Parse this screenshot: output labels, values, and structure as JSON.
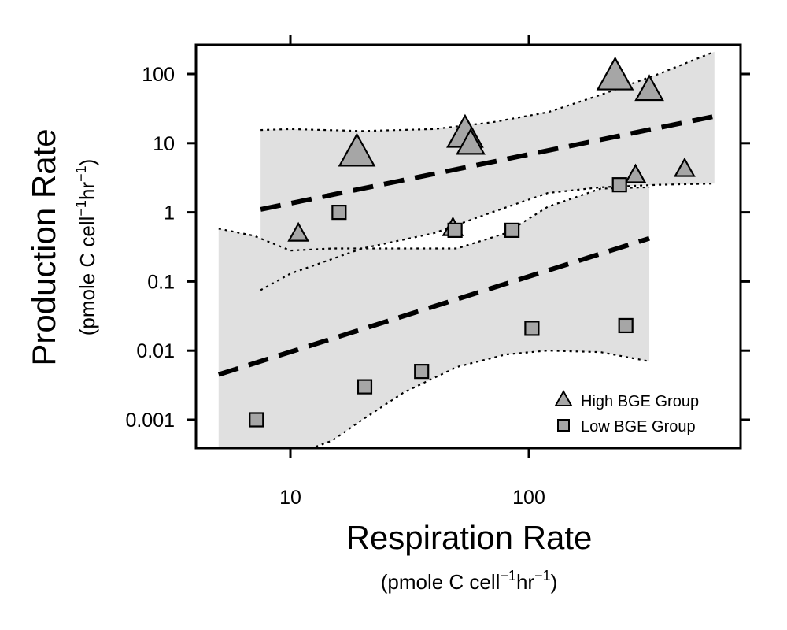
{
  "chart_data": {
    "type": "scatter",
    "x_scale": "log",
    "y_scale": "log",
    "xlim": [
      4.6,
      700
    ],
    "ylim": [
      0.0004,
      300
    ],
    "xlabel": "Respiration Rate",
    "xlabel_units": {
      "pre": "(pmole C cell",
      "exp1": "−1",
      "mid": "hr",
      "exp2": "−1",
      "post": ")"
    },
    "ylabel": "Production Rate",
    "ylabel_units": {
      "pre": "(pmole C cell",
      "exp1": "−1",
      "mid": "hr",
      "exp2": "−1",
      "post": ")"
    },
    "x_ticks": [
      {
        "value": 10,
        "label": "10"
      },
      {
        "value": 100,
        "label": "100"
      }
    ],
    "y_ticks": [
      {
        "value": 100,
        "label": "100"
      },
      {
        "value": 10,
        "label": "10"
      },
      {
        "value": 1,
        "label": "1"
      },
      {
        "value": 0.1,
        "label": "0.1"
      },
      {
        "value": 0.01,
        "label": "0.01"
      },
      {
        "value": 0.001,
        "label": "0.001"
      }
    ],
    "legend_position": "bottom-right",
    "grid": false,
    "series": [
      {
        "name": "High BGE Group",
        "marker": "triangle",
        "color": "#a6a6a6",
        "points": [
          {
            "x": 10.8,
            "y": 0.5,
            "size": "small"
          },
          {
            "x": 19,
            "y": 7.5,
            "size": "large"
          },
          {
            "x": 48,
            "y": 0.6,
            "size": "small"
          },
          {
            "x": 54,
            "y": 14,
            "size": "large"
          },
          {
            "x": 57,
            "y": 10,
            "size": "medium"
          },
          {
            "x": 230,
            "y": 95,
            "size": "large"
          },
          {
            "x": 280,
            "y": 3.5,
            "size": "small"
          },
          {
            "x": 320,
            "y": 60,
            "size": "medium"
          },
          {
            "x": 450,
            "y": 4.3,
            "size": "small"
          }
        ]
      },
      {
        "name": "Low BGE Group",
        "marker": "square",
        "color": "#a6a6a6",
        "points": [
          {
            "x": 7.2,
            "y": 0.001
          },
          {
            "x": 16,
            "y": 1.0
          },
          {
            "x": 20.5,
            "y": 0.003
          },
          {
            "x": 35.5,
            "y": 0.005
          },
          {
            "x": 49,
            "y": 0.55
          },
          {
            "x": 85,
            "y": 0.55
          },
          {
            "x": 103,
            "y": 0.021
          },
          {
            "x": 240,
            "y": 2.5
          },
          {
            "x": 255,
            "y": 0.023
          }
        ]
      }
    ],
    "fits": [
      {
        "group": "High BGE Group",
        "line": [
          {
            "x": 7.5,
            "y": 1.1
          },
          {
            "x": 620,
            "y": 25
          }
        ],
        "band_x": [
          7.5,
          10,
          20,
          40,
          70,
          120,
          200,
          350,
          600
        ],
        "band_upper": [
          15.5,
          16,
          15,
          16,
          20,
          28,
          50,
          100,
          210
        ],
        "band_lower": [
          0.075,
          0.13,
          0.3,
          0.5,
          1.0,
          1.9,
          2.3,
          2.5,
          2.6
        ]
      },
      {
        "group": "Low BGE Group",
        "line": [
          {
            "x": 5,
            "y": 0.0045
          },
          {
            "x": 320,
            "y": 0.42
          }
        ],
        "band_x": [
          5,
          7,
          10,
          15,
          20,
          30,
          50,
          80,
          120,
          200,
          320
        ],
        "band_upper": [
          0.58,
          0.46,
          0.28,
          0.3,
          0.3,
          0.3,
          0.3,
          0.5,
          1.2,
          2.2,
          2.3
        ],
        "band_lower": [
          0.0002,
          0.0002,
          0.0003,
          0.0005,
          0.001,
          0.0025,
          0.0058,
          0.0088,
          0.01,
          0.0095,
          0.007
        ]
      }
    ]
  }
}
